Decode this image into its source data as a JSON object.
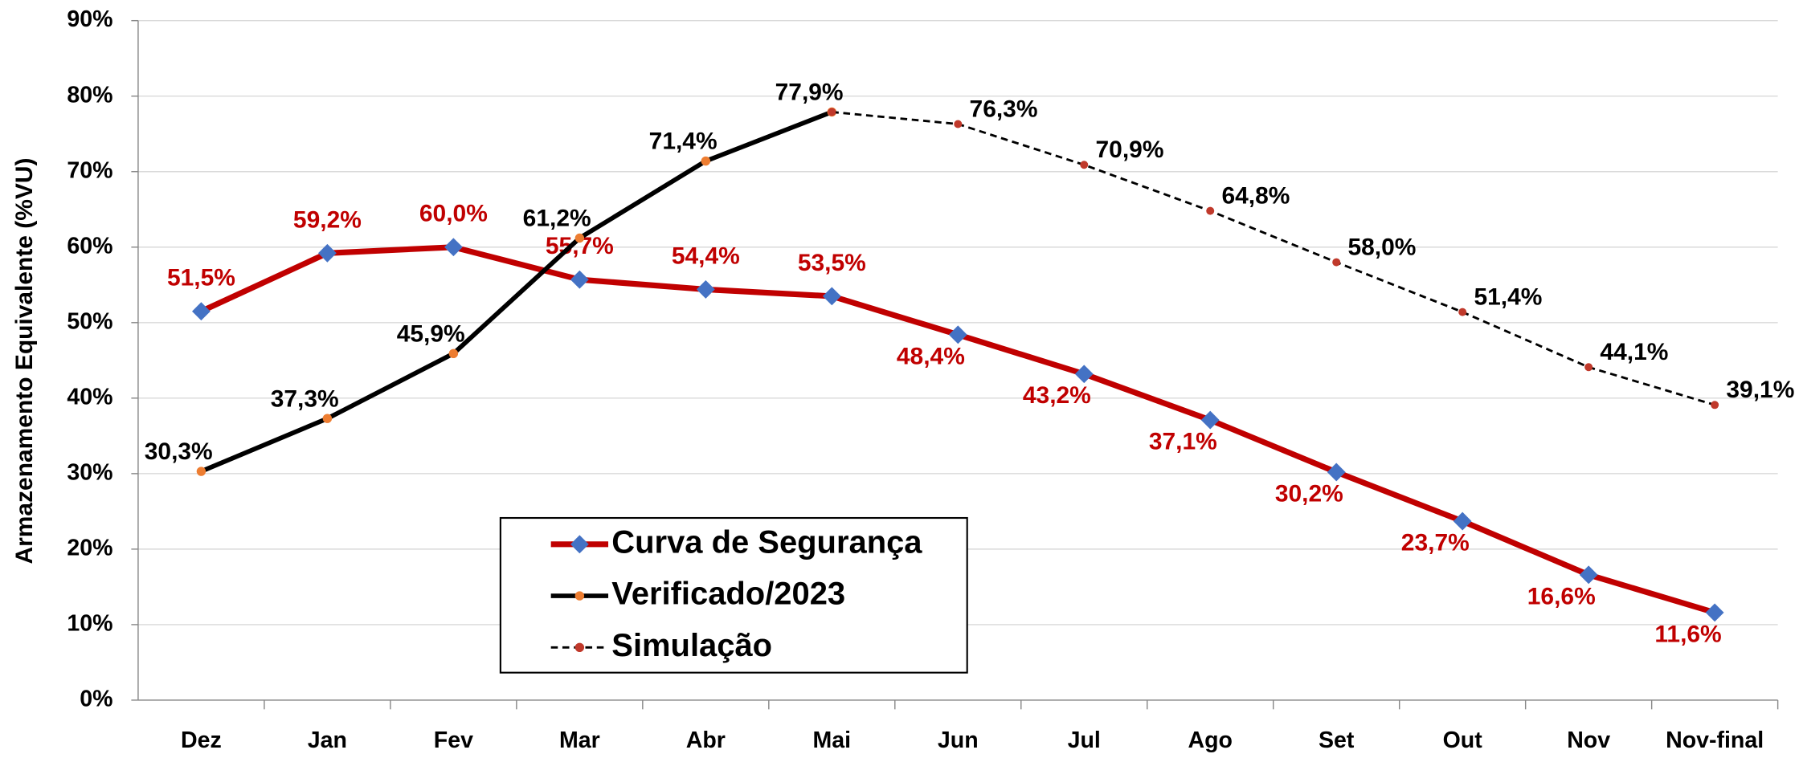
{
  "chart_data": {
    "type": "line",
    "ylabel": "Armazenamento Equivalente (%VU)",
    "categories": [
      "Dez",
      "Jan",
      "Fev",
      "Mar",
      "Abr",
      "Mai",
      "Jun",
      "Jul",
      "Ago",
      "Set",
      "Out",
      "Nov",
      "Nov-final"
    ],
    "ylim": [
      0,
      90
    ],
    "yticks": [
      {
        "value": 0,
        "label": "0%"
      },
      {
        "value": 10,
        "label": "10%"
      },
      {
        "value": 20,
        "label": "20%"
      },
      {
        "value": 30,
        "label": "30%"
      },
      {
        "value": 40,
        "label": "40%"
      },
      {
        "value": 50,
        "label": "50%"
      },
      {
        "value": 60,
        "label": "60%"
      },
      {
        "value": 70,
        "label": "70%"
      },
      {
        "value": 80,
        "label": "80%"
      },
      {
        "value": 90,
        "label": "90%"
      }
    ],
    "grid": true,
    "series": [
      {
        "name": "Curva de Segurança",
        "color": "#c00000",
        "marker_color": "#4472c4",
        "values": [
          51.5,
          59.2,
          60.0,
          55.7,
          54.4,
          53.5,
          48.4,
          43.2,
          37.1,
          30.2,
          23.7,
          16.6,
          11.6
        ],
        "value_labels": [
          "51,5%",
          "59,2%",
          "60,0%",
          "55,7%",
          "54,4%",
          "53,5%",
          "48,4%",
          "43,2%",
          "37,1%",
          "30,2%",
          "23,7%",
          "16,6%",
          "11,6%"
        ]
      },
      {
        "name": "Verificado/2023",
        "color": "#000000",
        "marker_color": "#ed7d31",
        "values": [
          30.3,
          37.3,
          45.9,
          61.2,
          71.4,
          77.9,
          null,
          null,
          null,
          null,
          null,
          null,
          null
        ],
        "value_labels": [
          "30,3%",
          "37,3%",
          "45,9%",
          "61,2%",
          "71,4%",
          "77,9%",
          null,
          null,
          null,
          null,
          null,
          null,
          null
        ]
      },
      {
        "name": "Simulação",
        "color": "#000000",
        "marker_color": "#c0392b",
        "dashed": true,
        "values": [
          null,
          null,
          null,
          null,
          null,
          77.9,
          76.3,
          70.9,
          64.8,
          58.0,
          51.4,
          44.1,
          39.1
        ],
        "value_labels": [
          null,
          null,
          null,
          null,
          null,
          null,
          "76,3%",
          "70,9%",
          "64,8%",
          "58,0%",
          "51,4%",
          "44,1%",
          "39,1%"
        ]
      }
    ]
  }
}
